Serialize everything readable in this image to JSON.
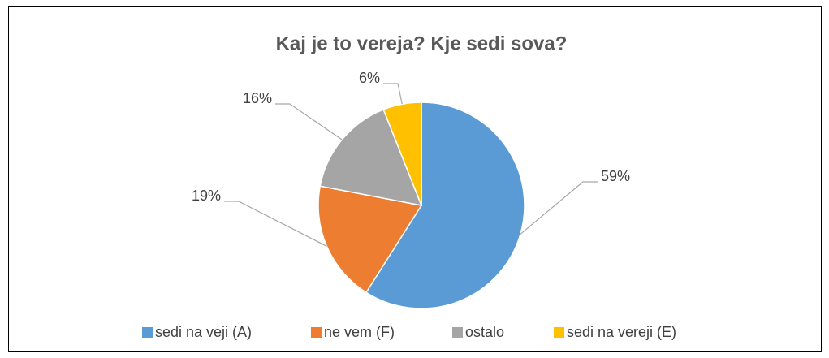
{
  "chart_data": {
    "type": "pie",
    "title": "Kaj je to vereja? Kje sedi sova?",
    "categories": [
      "sedi na veji (A)",
      "ne vem (F)",
      "ostalo",
      "sedi na vereji (E)"
    ],
    "values": [
      59,
      19,
      16,
      6
    ],
    "value_labels": [
      "59%",
      "19%",
      "16%",
      "6%"
    ],
    "colors": [
      "#5b9bd5",
      "#ed7d31",
      "#a5a5a5",
      "#ffc000"
    ],
    "legend": "bottom"
  }
}
